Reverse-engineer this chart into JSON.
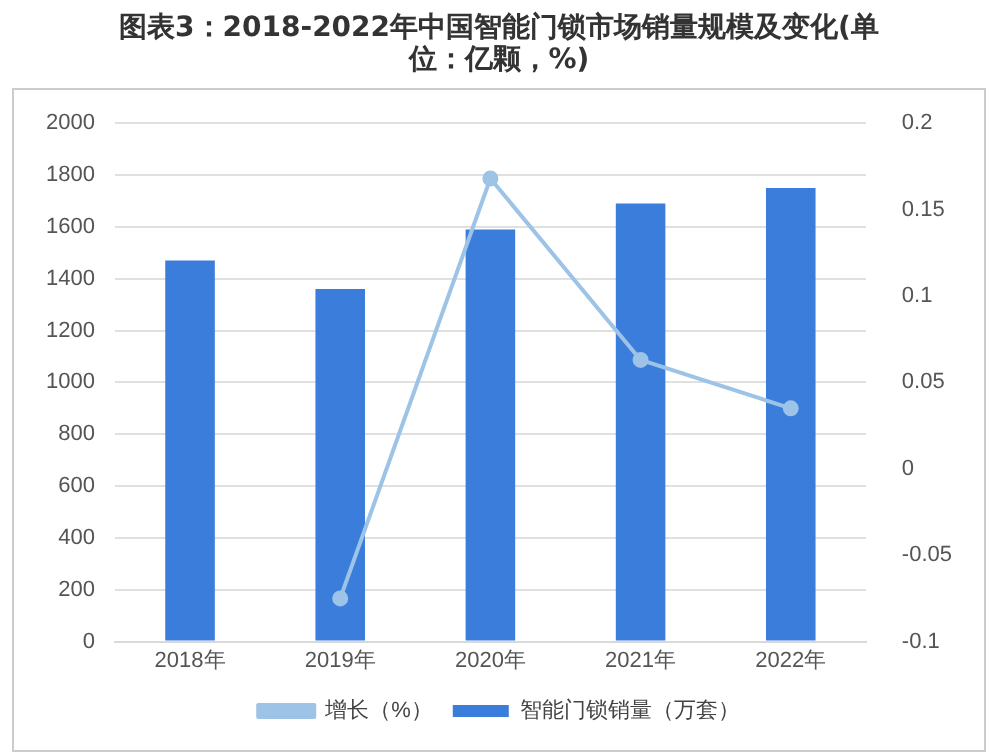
{
  "chart_data": {
    "type": "bar",
    "title": "图表3：2018-2022年中国智能门锁市场销量规模及变化(单位：亿颗，%)",
    "categories": [
      "2018年",
      "2019年",
      "2020年",
      "2021年",
      "2022年"
    ],
    "series": [
      {
        "name": "智能门锁销量（万套）",
        "color": "#3b7ddb",
        "values": [
          1470,
          1360,
          1590,
          1690,
          1750
        ]
      },
      {
        "name": "增长（%）",
        "type": "line",
        "axis": "y2",
        "color": "#9dc3e6",
        "values": [
          null,
          -0.075,
          0.168,
          0.063,
          0.035
        ]
      }
    ],
    "ylim": [
      0,
      2000
    ],
    "yticks": [
      0,
      200,
      400,
      600,
      800,
      1000,
      1200,
      1400,
      1600,
      1800,
      2000
    ],
    "y2lim": [
      -0.1,
      0.2
    ],
    "y2ticks": [
      -0.1,
      -0.05,
      0,
      0.05,
      0.1,
      0.15,
      0.2
    ],
    "grid": "y",
    "legend": "bottom",
    "marker": "circle"
  }
}
